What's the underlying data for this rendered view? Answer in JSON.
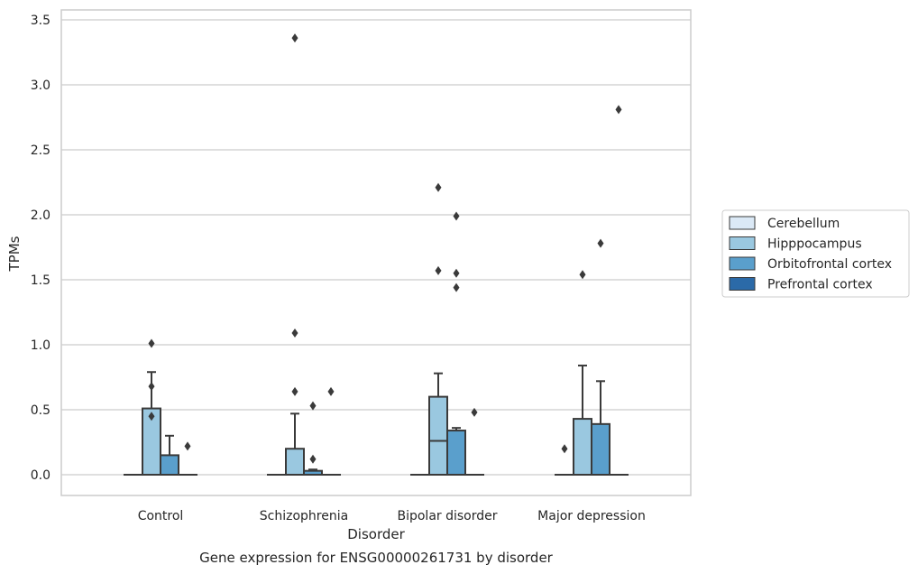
{
  "chart_data": {
    "type": "box",
    "title": "",
    "caption": "Gene expression for ENSG00000261731 by disorder",
    "xlabel": "Disorder",
    "ylabel": "TPMs",
    "ylim": [
      -0.16,
      3.55
    ],
    "yticks": [
      0.0,
      0.5,
      1.0,
      1.5,
      2.0,
      2.5,
      3.0,
      3.5
    ],
    "ytick_labels": [
      "0.0",
      "0.5",
      "1.0",
      "1.5",
      "2.0",
      "2.5",
      "3.0",
      "3.5"
    ],
    "grid": "horizontal",
    "legend_placement": "right",
    "categories": [
      "Control",
      "Schizophrenia",
      "Bipolar disorder",
      "Major depression"
    ],
    "series": [
      {
        "name": "Cerebellum",
        "color": "#dbe9f6",
        "boxes": [
          {
            "category": "Control",
            "q1": 0,
            "median": 0,
            "q3": 0,
            "whisker_low": 0,
            "whisker_high": 0,
            "outliers": []
          },
          {
            "category": "Schizophrenia",
            "q1": 0,
            "median": 0,
            "q3": 0,
            "whisker_low": 0,
            "whisker_high": 0,
            "outliers": []
          },
          {
            "category": "Bipolar disorder",
            "q1": 0,
            "median": 0,
            "q3": 0,
            "whisker_low": 0,
            "whisker_high": 0,
            "outliers": []
          },
          {
            "category": "Major depression",
            "q1": 0,
            "median": 0,
            "q3": 0,
            "whisker_low": 0,
            "whisker_high": 0,
            "outliers": [
              0.2
            ]
          }
        ]
      },
      {
        "name": "Hipppocampus",
        "color": "#9ac8e0",
        "boxes": [
          {
            "category": "Control",
            "q1": 0,
            "median": 0,
            "q3": 0.51,
            "whisker_low": 0,
            "whisker_high": 0.79,
            "outliers": [
              1.01,
              0.68,
              0.45
            ]
          },
          {
            "category": "Schizophrenia",
            "q1": 0,
            "median": 0,
            "q3": 0.2,
            "whisker_low": 0,
            "whisker_high": 0.47,
            "outliers": [
              3.36,
              1.09,
              0.64
            ]
          },
          {
            "category": "Bipolar disorder",
            "q1": 0,
            "median": 0.26,
            "q3": 0.6,
            "whisker_low": 0,
            "whisker_high": 0.78,
            "outliers": [
              2.21,
              1.57
            ]
          },
          {
            "category": "Major depression",
            "q1": 0,
            "median": 0,
            "q3": 0.43,
            "whisker_low": 0,
            "whisker_high": 0.84,
            "outliers": [
              1.54
            ]
          }
        ]
      },
      {
        "name": "Orbitofrontal cortex",
        "color": "#5a9fcc",
        "boxes": [
          {
            "category": "Control",
            "q1": 0,
            "median": 0,
            "q3": 0.15,
            "whisker_low": 0,
            "whisker_high": 0.3,
            "outliers": []
          },
          {
            "category": "Schizophrenia",
            "q1": 0,
            "median": 0,
            "q3": 0.03,
            "whisker_low": 0,
            "whisker_high": 0.04,
            "outliers": [
              0.53,
              0.12
            ]
          },
          {
            "category": "Bipolar disorder",
            "q1": 0,
            "median": 0,
            "q3": 0.34,
            "whisker_low": 0,
            "whisker_high": 0.36,
            "outliers": [
              1.99,
              1.55,
              1.44
            ]
          },
          {
            "category": "Major depression",
            "q1": 0,
            "median": 0,
            "q3": 0.39,
            "whisker_low": 0,
            "whisker_high": 0.72,
            "outliers": [
              1.78
            ]
          }
        ]
      },
      {
        "name": "Prefrontal cortex",
        "color": "#2b6aa8",
        "boxes": [
          {
            "category": "Control",
            "q1": 0,
            "median": 0,
            "q3": 0,
            "whisker_low": 0,
            "whisker_high": 0,
            "outliers": [
              0.22
            ]
          },
          {
            "category": "Schizophrenia",
            "q1": 0,
            "median": 0,
            "q3": 0,
            "whisker_low": 0,
            "whisker_high": 0,
            "outliers": [
              0.64
            ]
          },
          {
            "category": "Bipolar disorder",
            "q1": 0,
            "median": 0,
            "q3": 0,
            "whisker_low": 0,
            "whisker_high": 0,
            "outliers": [
              0.48
            ]
          },
          {
            "category": "Major depression",
            "q1": 0,
            "median": 0,
            "q3": 0,
            "whisker_low": 0,
            "whisker_high": 0,
            "outliers": [
              2.81
            ]
          }
        ]
      }
    ]
  },
  "colors": {
    "grid": "#cccccc",
    "frame": "#cccccc",
    "line": "#3a3a3a",
    "text": "#262626"
  }
}
